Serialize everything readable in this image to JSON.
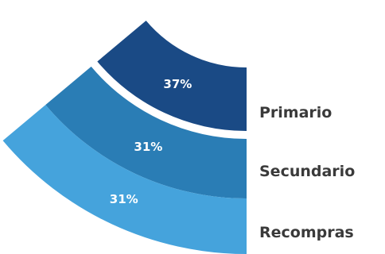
{
  "chart_data": {
    "type": "fan",
    "categories": [
      "Primario",
      "Secundario",
      "Recompras"
    ],
    "values": [
      37,
      31,
      31
    ],
    "value_labels": [
      "37%",
      "31%",
      "31%"
    ],
    "colors": [
      "#1a4a85",
      "#2a7db5",
      "#45a3dc"
    ]
  }
}
